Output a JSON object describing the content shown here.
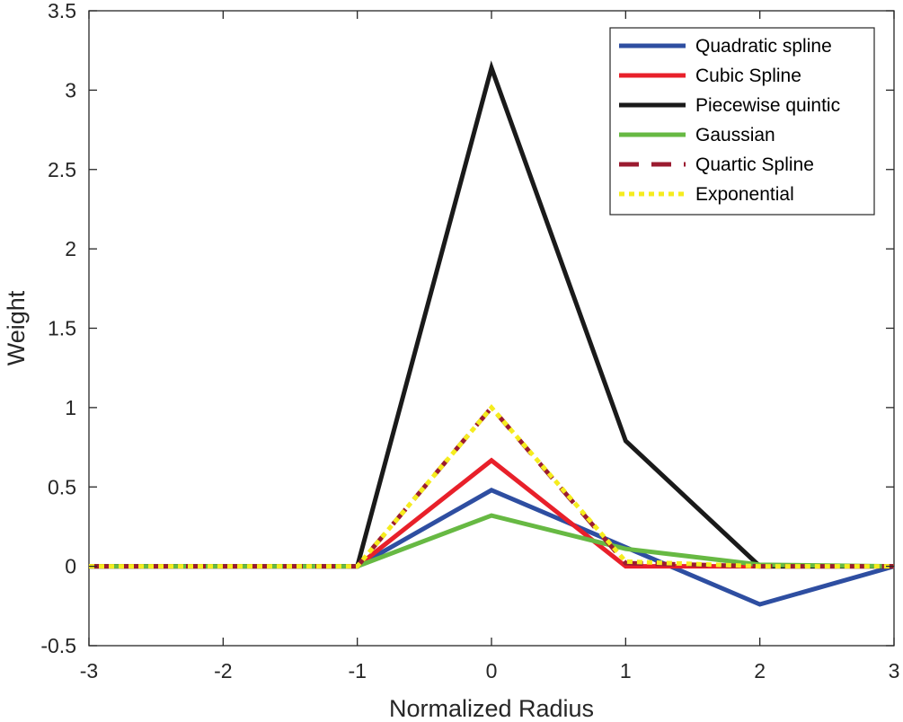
{
  "chart_data": {
    "type": "line",
    "title": "",
    "xlabel": "Normalized Radius",
    "ylabel": "Weight",
    "xlim": [
      -3,
      3
    ],
    "ylim": [
      -0.5,
      3.5
    ],
    "xticks": [
      -3,
      -2,
      -1,
      0,
      1,
      2,
      3
    ],
    "yticks": [
      -0.5,
      0,
      0.5,
      1,
      1.5,
      2,
      2.5,
      3,
      3.5
    ],
    "xtick_labels": [
      "-3",
      "-2",
      "-1",
      "0",
      "1",
      "2",
      "3"
    ],
    "ytick_labels": [
      "-0.5",
      "0",
      "0.5",
      "1",
      "1.5",
      "2",
      "2.5",
      "3",
      "3.5"
    ],
    "grid": false,
    "legend_position": "top-right",
    "x": [
      -3,
      -2,
      -1,
      0,
      1,
      2,
      3
    ],
    "series": [
      {
        "name": "Quadratic spline",
        "color": "#2e4ea1",
        "style": "solid",
        "values": [
          0,
          0,
          0,
          0.48,
          0.12,
          -0.24,
          0
        ]
      },
      {
        "name": "Cubic Spline",
        "color": "#e8202a",
        "style": "solid",
        "values": [
          0,
          0,
          0,
          0.667,
          0,
          0,
          0
        ]
      },
      {
        "name": "Piecewise quintic",
        "color": "#1a1a1a",
        "style": "solid",
        "values": [
          0,
          0,
          0,
          3.14,
          0.79,
          0,
          0
        ]
      },
      {
        "name": "Gaussian",
        "color": "#67b943",
        "style": "solid",
        "values": [
          0,
          0,
          0,
          0.32,
          0.11,
          0.01,
          0
        ]
      },
      {
        "name": "Quartic Spline",
        "color": "#9b1b30",
        "style": "dashed",
        "values": [
          0,
          0,
          0,
          1.0,
          0.02,
          0,
          0
        ]
      },
      {
        "name": "Exponential",
        "color": "#f5ec1e",
        "style": "dotted",
        "values": [
          0,
          0,
          0,
          1.0,
          0.03,
          0,
          0
        ]
      }
    ]
  }
}
